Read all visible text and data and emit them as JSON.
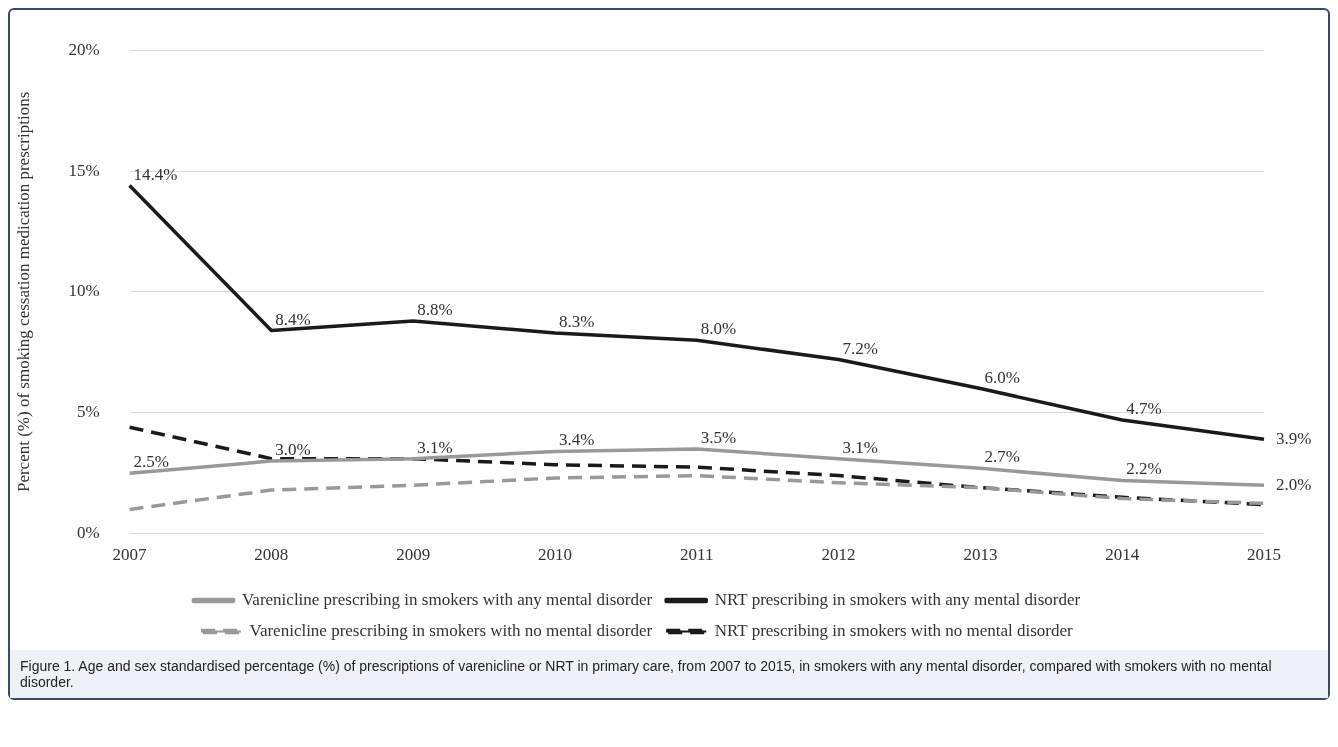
{
  "chart_data": {
    "type": "line",
    "ylabel": "Percent (%) of smoking cessation medication prescriptions",
    "categories": [
      "2007",
      "2008",
      "2009",
      "2010",
      "2011",
      "2012",
      "2013",
      "2014",
      "2015"
    ],
    "ylim": [
      0,
      20
    ],
    "yticks": [
      {
        "value": 0,
        "label": "0%"
      },
      {
        "value": 5,
        "label": "5%"
      },
      {
        "value": 10,
        "label": "10%"
      },
      {
        "value": 15,
        "label": "15%"
      },
      {
        "value": 20,
        "label": "20%"
      }
    ],
    "grid": "y",
    "legend": "bottom",
    "marker": "none",
    "series": [
      {
        "name": "Varenicline prescribing in smokers with any mental disorder",
        "color": "#999999",
        "line_style": "solid",
        "values": [
          2.5,
          3.0,
          3.1,
          3.4,
          3.5,
          3.1,
          2.7,
          2.2,
          2.0
        ],
        "value_labels": [
          "2.5%",
          "3.0%",
          "3.1%",
          "3.4%",
          "3.5%",
          "3.1%",
          "2.7%",
          "2.2%",
          "2.0%"
        ]
      },
      {
        "name": "NRT prescribing in smokers with any mental disorder",
        "color": "#1a1a1a",
        "line_style": "solid",
        "values": [
          14.4,
          8.4,
          8.8,
          8.3,
          8.0,
          7.2,
          6.0,
          4.7,
          3.9
        ],
        "value_labels": [
          "14.4%",
          "8.4%",
          "8.8%",
          "8.3%",
          "8.0%",
          "7.2%",
          "6.0%",
          "4.7%",
          "3.9%"
        ]
      },
      {
        "name": "Varenicline prescribing in smokers with no mental disorder",
        "color": "#999999",
        "line_style": "dashed",
        "values": [
          1.0,
          1.8,
          2.0,
          2.3,
          2.4,
          2.1,
          1.9,
          1.45,
          1.25
        ]
      },
      {
        "name": "NRT prescribing in smokers with no mental disorder",
        "color": "#1a1a1a",
        "line_style": "dashed",
        "values": [
          4.4,
          3.1,
          3.1,
          2.85,
          2.75,
          2.4,
          1.9,
          1.5,
          1.2
        ]
      }
    ],
    "annotations": [
      "Figure 1. Age and sex standardised percentage (%) of prescriptions of varenicline or NRT in primary care, from 2007 to 2015, in smokers with any mental disorder, compared with smokers with no mental disorder."
    ]
  }
}
